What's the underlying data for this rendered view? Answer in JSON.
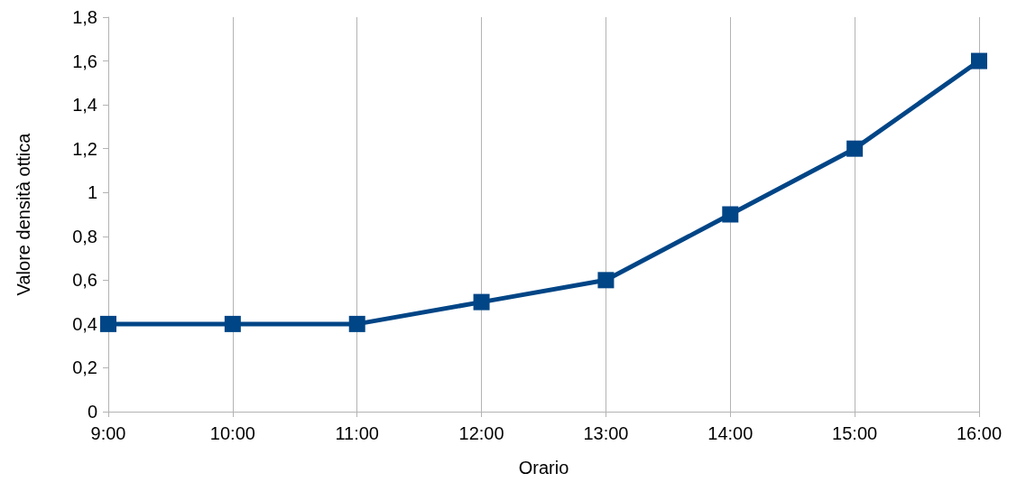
{
  "chart_data": {
    "type": "line",
    "xlabel": "Orario",
    "ylabel": "Valore densità ottica",
    "categories": [
      "9:00",
      "10:00",
      "11:00",
      "12:00",
      "13:00",
      "14:00",
      "15:00",
      "16:00"
    ],
    "series": [
      {
        "color": "#004586",
        "values": [
          0.4,
          0.4,
          0.4,
          0.5,
          0.6,
          0.9,
          1.2,
          1.6
        ]
      }
    ],
    "ylim": [
      0,
      1.8
    ],
    "yticks": [
      0,
      {
        "value": 0.2,
        "label": "0,2"
      },
      {
        "value": 0.4,
        "label": "0,4"
      },
      {
        "value": 0.6,
        "label": "0,6"
      },
      {
        "value": 0.8,
        "label": "0,8"
      },
      1,
      {
        "value": 1.2,
        "label": "1,2"
      },
      {
        "value": 1.4,
        "label": "1,4"
      },
      {
        "value": 1.6,
        "label": "1,6"
      },
      {
        "value": 1.8,
        "label": "1,8"
      }
    ],
    "grid": "x",
    "marker": "square",
    "line_style": "solid"
  }
}
